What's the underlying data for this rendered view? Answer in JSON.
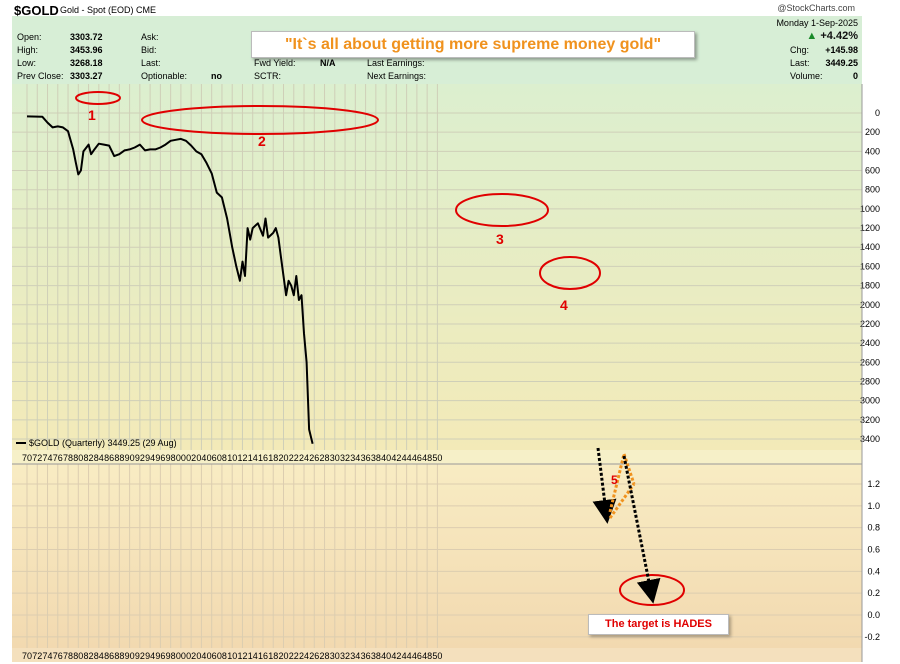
{
  "header": {
    "symbol": "$GOLD",
    "description": "Gold - Spot (EOD)",
    "exchange": "CME",
    "date": "Monday 1-Sep-2025",
    "brand": "@StockCharts.com",
    "stats_left": [
      {
        "label": "Open:",
        "value": "3303.72"
      },
      {
        "label": "High:",
        "value": "3453.96"
      },
      {
        "label": "Low:",
        "value": "3268.18"
      },
      {
        "label": "Prev Close:",
        "value": "3303.27"
      }
    ],
    "stats_mid": [
      {
        "label": "Ask:",
        "value": ""
      },
      {
        "label": "Bid:",
        "value": ""
      },
      {
        "label": "Last:",
        "value": ""
      },
      {
        "label": "Optionable:",
        "value": "no"
      }
    ],
    "stats_mid2": [
      {
        "label": "Fwd Yield:",
        "value": "N/A"
      },
      {
        "label": "SCTR:",
        "value": ""
      }
    ],
    "stats_mid3": [
      {
        "label": "Last Earnings:",
        "value": ""
      },
      {
        "label": "Next Earnings:",
        "value": ""
      }
    ],
    "change_pct": "+4.42%",
    "chg_label": "Chg:",
    "chg_value": "+145.98",
    "last_label": "Last:",
    "last_value": "3449.25",
    "volume_label": "Volume:",
    "volume_value": "0"
  },
  "annotations": {
    "quote": "\"It`s all about getting more supreme money gold\"",
    "target": "The target is HADES",
    "labels": [
      "1",
      "2",
      "3",
      "4",
      "5"
    ]
  },
  "colors": {
    "header_bg": "#d7eed6",
    "upper_top": "#dcefcf",
    "upper_bottom": "#f3eab8",
    "lower_top": "#f8ecc3",
    "lower_bottom": "#f2d9b0",
    "line": "#000000",
    "annotation_red": "#e00000",
    "annotation_orange": "#f0921e"
  },
  "chart_data": [
    {
      "type": "line",
      "y_inverted": true,
      "legend": "$GOLD (Quarterly) 3449.25 (29 Aug)",
      "ylim": [
        3500,
        0
      ],
      "yticks": [
        0,
        200,
        400,
        600,
        800,
        1000,
        1200,
        1400,
        1600,
        1800,
        2000,
        2200,
        2400,
        2600,
        2800,
        3000,
        3200,
        3400
      ],
      "xticks": [
        "70",
        "72",
        "74",
        "76",
        "78",
        "80",
        "82",
        "84",
        "86",
        "88",
        "90",
        "92",
        "94",
        "96",
        "98",
        "00",
        "02",
        "04",
        "06",
        "08",
        "10",
        "12",
        "14",
        "16",
        "18",
        "20",
        "22",
        "24",
        "26",
        "28",
        "30",
        "32",
        "34",
        "36",
        "38",
        "40",
        "42",
        "44",
        "46",
        "48",
        "50"
      ],
      "grid": true,
      "series": [
        {
          "x": [
            1970,
            1973,
            1974,
            1975,
            1976,
            1977,
            1978,
            1979,
            1979.5,
            1980,
            1980.5,
            1981,
            1982,
            1982.5,
            1983,
            1984,
            1985,
            1986,
            1987,
            1988,
            1989,
            1990,
            1991,
            1992,
            1993,
            1994,
            1995,
            1996,
            1997,
            1998,
            1999,
            2000,
            2001,
            2002,
            2003,
            2004,
            2005,
            2006,
            2007,
            2008,
            2009,
            2010,
            2010.8,
            2011.5,
            2012,
            2012.5,
            2013,
            2013.5,
            2014,
            2015,
            2016,
            2016.5,
            2017,
            2018,
            2018.5,
            2019,
            2019.5,
            2020,
            2020.5,
            2021,
            2021.5,
            2022,
            2022.5,
            2023,
            2023.5,
            2024,
            2024.5,
            2025,
            2025.67
          ],
          "values": [
            35,
            40,
            100,
            150,
            140,
            150,
            190,
            380,
            512,
            640,
            600,
            400,
            330,
            430,
            390,
            320,
            330,
            340,
            450,
            430,
            390,
            380,
            360,
            330,
            390,
            380,
            380,
            360,
            330,
            290,
            280,
            270,
            290,
            340,
            400,
            430,
            520,
            630,
            830,
            880,
            1100,
            1400,
            1600,
            1750,
            1550,
            1700,
            1200,
            1320,
            1200,
            1150,
            1280,
            1100,
            1300,
            1250,
            1200,
            1300,
            1500,
            1700,
            1900,
            1750,
            1800,
            1900,
            1700,
            1950,
            1900,
            2300,
            2600,
            3300,
            3449
          ]
        }
      ]
    },
    {
      "type": "line",
      "ylim": [
        -0.3,
        1.4
      ],
      "yticks": [
        -0.2,
        0,
        0.2,
        0.4,
        0.6,
        0.8,
        1.0,
        1.2
      ],
      "xticks": [
        "70",
        "72",
        "74",
        "76",
        "78",
        "80",
        "82",
        "84",
        "86",
        "88",
        "90",
        "92",
        "94",
        "96",
        "98",
        "00",
        "02",
        "04",
        "06",
        "08",
        "10",
        "12",
        "14",
        "16",
        "18",
        "20",
        "22",
        "24",
        "26",
        "28",
        "30",
        "32",
        "34",
        "36",
        "38",
        "40",
        "42",
        "44",
        "46",
        "48",
        "50"
      ],
      "grid": true,
      "series": []
    }
  ]
}
